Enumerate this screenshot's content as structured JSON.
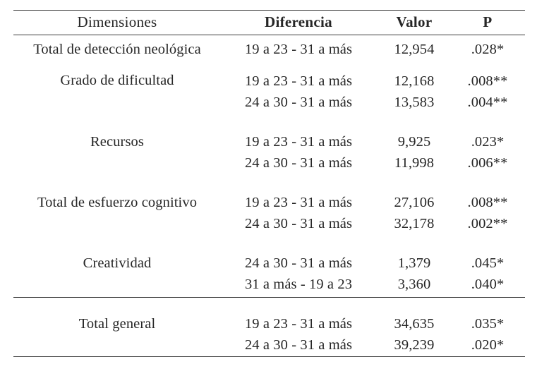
{
  "headers": {
    "dimensiones": "Dimensiones",
    "diferencia": "Diferencia",
    "valor": "Valor",
    "p": "P"
  },
  "groups": [
    {
      "dimension": "Total de detección neológica",
      "rows": [
        {
          "diferencia": "19 a 23 - 31 a más",
          "valor": "12,954",
          "p": ".028*"
        }
      ]
    },
    {
      "dimension": "Grado de dificultad",
      "rows": [
        {
          "diferencia": "19 a 23 - 31 a más",
          "valor": "12,168",
          "p": ".008**"
        },
        {
          "diferencia": "24 a 30 - 31 a más",
          "valor": "13,583",
          "p": ".004**"
        }
      ]
    },
    {
      "dimension": "Recursos",
      "rows": [
        {
          "diferencia": "19 a 23 - 31 a más",
          "valor": "9,925",
          "p": ".023*"
        },
        {
          "diferencia": "24 a 30 - 31 a más",
          "valor": "11,998",
          "p": ".006**"
        }
      ]
    },
    {
      "dimension": "Total de esfuerzo cognitivo",
      "rows": [
        {
          "diferencia": "19 a 23 - 31 a más",
          "valor": "27,106",
          "p": ".008**"
        },
        {
          "diferencia": "24 a 30 - 31 a más",
          "valor": "32,178",
          "p": ".002**"
        }
      ]
    },
    {
      "dimension": "Creatividad",
      "rows": [
        {
          "diferencia": "24 a 30 - 31 a más",
          "valor": "1,379",
          "p": ".045*"
        },
        {
          "diferencia": "31 a más - 19 a 23",
          "valor": "3,360",
          "p": ".040*"
        }
      ]
    },
    {
      "dimension": "Total general",
      "rows": [
        {
          "diferencia": "19 a 23 - 31 a más",
          "valor": "34,635",
          "p": ".035*"
        },
        {
          "diferencia": "24 a 30 - 31 a más",
          "valor": "39,239",
          "p": ".020*"
        }
      ]
    }
  ]
}
